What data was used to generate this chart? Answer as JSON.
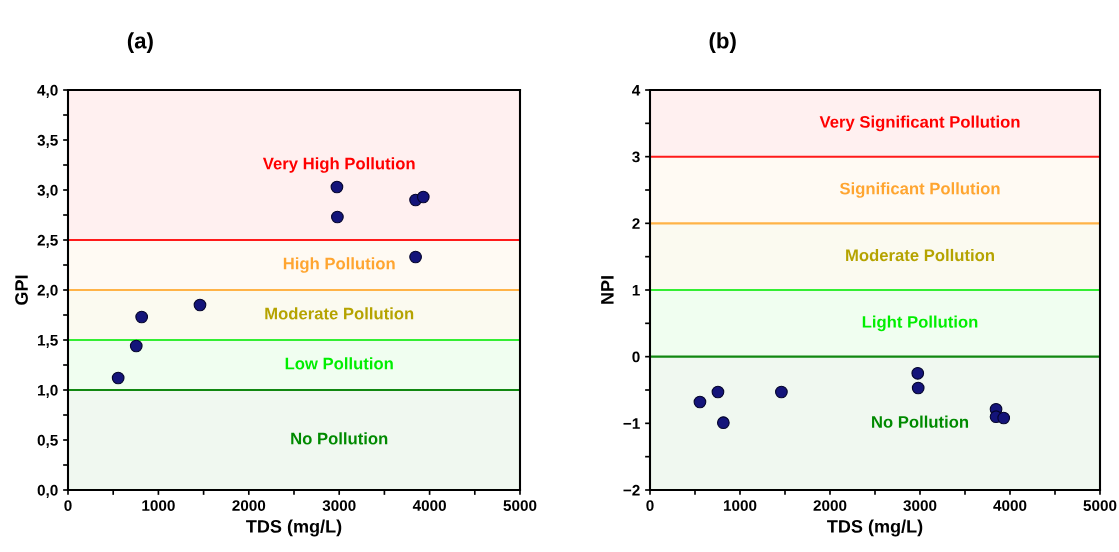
{
  "chart_data": [
    {
      "type": "scatter",
      "title": "(a)",
      "xlabel": "TDS (mg/L)",
      "ylabel": "GPI",
      "marker": "circle",
      "grid": false,
      "x": [
        555,
        755,
        815,
        1460,
        2975,
        2980,
        3845,
        3845,
        3930
      ],
      "series": [
        {
          "color": "#14147a",
          "values": [
            1.12,
            1.44,
            1.73,
            1.85,
            3.03,
            2.73,
            2.9,
            2.33,
            2.93
          ]
        }
      ],
      "xlim": [
        0,
        5000
      ],
      "xticks": [
        0,
        {
          "value": 500,
          "label": null
        },
        1000,
        {
          "value": 1500,
          "label": null
        },
        2000,
        {
          "value": 2500,
          "label": null
        },
        3000,
        {
          "value": 3500,
          "label": null
        },
        4000,
        {
          "value": 4500,
          "label": null
        },
        5000
      ],
      "ylim": [
        0,
        4
      ],
      "yticks": [
        {
          "value": 0,
          "label": "0,0"
        },
        {
          "value": 0.25,
          "label": null
        },
        {
          "value": 0.5,
          "label": "0,5"
        },
        {
          "value": 0.75,
          "label": null
        },
        {
          "value": 1,
          "label": "1,0"
        },
        {
          "value": 1.25,
          "label": null
        },
        {
          "value": 1.5,
          "label": "1,5"
        },
        {
          "value": 1.75,
          "label": null
        },
        {
          "value": 2,
          "label": "2,0"
        },
        {
          "value": 2.25,
          "label": null
        },
        {
          "value": 2.5,
          "label": "2,5"
        },
        {
          "value": 2.75,
          "label": null
        },
        {
          "value": 3,
          "label": "3,0"
        },
        {
          "value": 3.25,
          "label": null
        },
        {
          "value": 3.5,
          "label": "3,5"
        },
        {
          "value": 3.75,
          "label": null
        },
        {
          "value": 4,
          "label": "4,0"
        }
      ],
      "ref_lines": [
        {
          "axis": "y",
          "value": 2.5,
          "color": "#ff1a1a"
        },
        {
          "axis": "y",
          "value": 2.0,
          "color": "#ffb347"
        },
        {
          "axis": "y",
          "value": 1.5,
          "color": "#33ee33"
        },
        {
          "axis": "y",
          "value": 1.0,
          "color": "#118811"
        }
      ],
      "bands": [
        {
          "axis": "y",
          "from": 2.5,
          "to": 4.0,
          "label": "Very High Pollution",
          "color": "#ff0000"
        },
        {
          "axis": "y",
          "from": 2.0,
          "to": 2.5,
          "label": "High Pollution",
          "color": "#ffa530"
        },
        {
          "axis": "y",
          "from": 1.5,
          "to": 2.0,
          "label": "Moderate Pollution",
          "color": "#b5a300"
        },
        {
          "axis": "y",
          "from": 1.0,
          "to": 1.5,
          "label": "Low Pollution",
          "color": "#00ee00"
        },
        {
          "axis": "y",
          "from": 0.0,
          "to": 1.0,
          "label": "No Pollution",
          "color": "#008a00"
        }
      ]
    },
    {
      "type": "scatter",
      "title": "(b)",
      "xlabel": "TDS (mg/L)",
      "ylabel": "NPI",
      "marker": "circle",
      "grid": false,
      "x": [
        555,
        755,
        815,
        1460,
        2975,
        2980,
        3845,
        3845,
        3930
      ],
      "series": [
        {
          "color": "#14147a",
          "values": [
            -0.68,
            -0.53,
            -0.99,
            -0.53,
            -0.25,
            -0.47,
            -0.79,
            -0.9,
            -0.92
          ]
        }
      ],
      "xlim": [
        0,
        5000
      ],
      "xticks": [
        0,
        {
          "value": 500,
          "label": null
        },
        1000,
        {
          "value": 1500,
          "label": null
        },
        2000,
        {
          "value": 2500,
          "label": null
        },
        3000,
        {
          "value": 3500,
          "label": null
        },
        4000,
        {
          "value": 4500,
          "label": null
        },
        5000
      ],
      "ylim": [
        -2,
        4
      ],
      "yticks": [
        {
          "value": -2,
          "label": "−2"
        },
        {
          "value": -1.5,
          "label": null
        },
        {
          "value": -1,
          "label": "−1"
        },
        {
          "value": -0.5,
          "label": null
        },
        0,
        {
          "value": 0.5,
          "label": null
        },
        1,
        {
          "value": 1.5,
          "label": null
        },
        2,
        {
          "value": 2.5,
          "label": null
        },
        3,
        {
          "value": 3.5,
          "label": null
        },
        4
      ],
      "ref_lines": [
        {
          "axis": "y",
          "value": 3,
          "color": "#ff1a1a"
        },
        {
          "axis": "y",
          "value": 2,
          "color": "#ffb347"
        },
        {
          "axis": "y",
          "value": 1,
          "color": "#33ee33"
        },
        {
          "axis": "y",
          "value": 0,
          "color": "#118811"
        }
      ],
      "bands": [
        {
          "axis": "y",
          "from": 3,
          "to": 4,
          "label": "Very Significant Pollution",
          "color": "#ff0000"
        },
        {
          "axis": "y",
          "from": 2,
          "to": 3,
          "label": "Significant Pollution",
          "color": "#ffa530"
        },
        {
          "axis": "y",
          "from": 1,
          "to": 2,
          "label": "Moderate Pollution",
          "color": "#b5a300"
        },
        {
          "axis": "y",
          "from": 0,
          "to": 1,
          "label": "Light Pollution",
          "color": "#00ee00"
        },
        {
          "axis": "y",
          "from": -2,
          "to": 0,
          "label": "No Pollution",
          "color": "#008a00"
        }
      ]
    }
  ]
}
